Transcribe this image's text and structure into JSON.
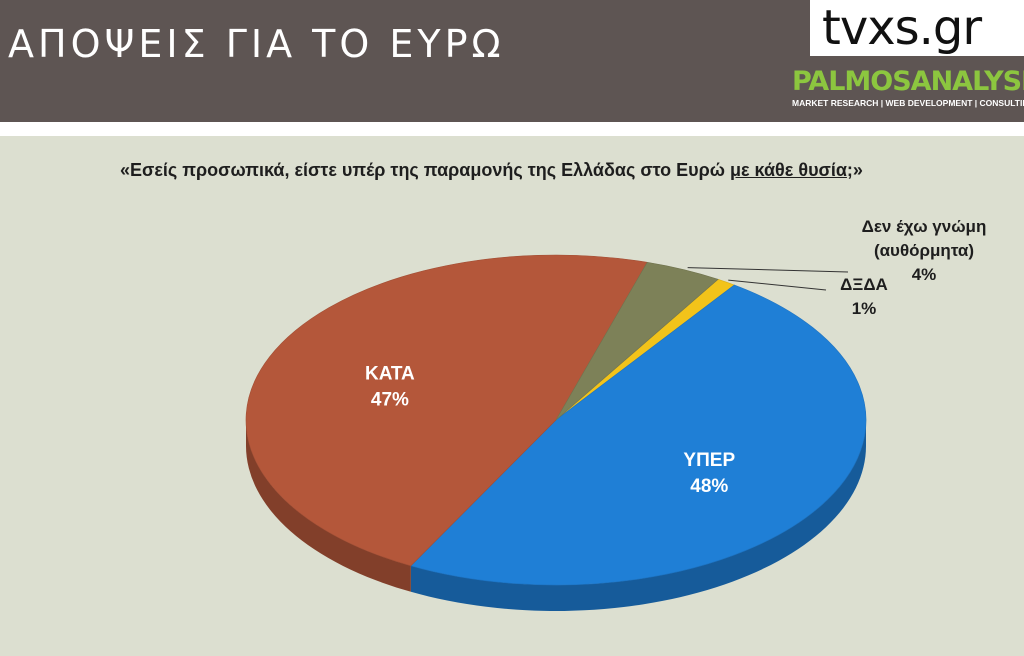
{
  "header": {
    "title": "ΑΠΟΨΕΙΣ ΓΙΑ ΤΟ ΕΥΡΩ",
    "logo_tvxs": "tvxs.gr",
    "logo_palmos": "PALMOSANALYSIS",
    "logo_palmos_tagline": "MARKET RESEARCH | WEB DEVELOPMENT | CONSULTING"
  },
  "question": {
    "text_before": "«Εσείς προσωπικά, είστε υπέρ της παραμονής της Ελλάδας στο Ευρώ ",
    "text_underlined": "με κάθε θυσία",
    "text_after": ";»"
  },
  "chart_data": {
    "type": "pie",
    "title": "",
    "slices": [
      {
        "label": "ΥΠΕΡ",
        "value": 48,
        "value_label": "48%",
        "color": "#1f7fd6"
      },
      {
        "label": "ΚΑΤΑ",
        "value": 47,
        "value_label": "47%",
        "color": "#b4573a"
      },
      {
        "label": "Δεν έχω γνώμη (αυθόρμητα)",
        "value": 4,
        "value_label": "4%",
        "color": "#7d8158"
      },
      {
        "label": "ΔΞΔΑ",
        "value": 1,
        "value_label": "1%",
        "color": "#f2c31a"
      }
    ],
    "style": "3d"
  }
}
